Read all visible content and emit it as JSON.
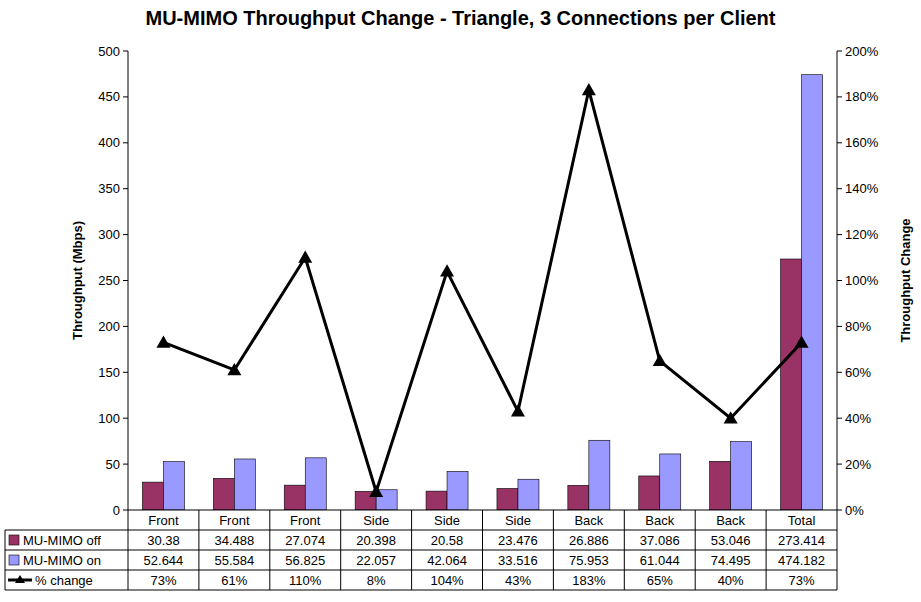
{
  "chart_data": {
    "type": "bar",
    "title": "MU-MIMO Throughput Change - Triangle, 3 Connections per Client",
    "ylabel": "Throughput (Mbps)",
    "y2label": "Throughput Change",
    "categories": [
      "Front",
      "Front",
      "Front",
      "Side",
      "Side",
      "Side",
      "Back",
      "Back",
      "Back",
      "Total"
    ],
    "series": [
      {
        "name": "MU-MIMO off",
        "color": "#993366",
        "values": [
          30.38,
          34.488,
          27.074,
          20.398,
          20.58,
          23.476,
          26.886,
          37.086,
          53.046,
          273.414
        ]
      },
      {
        "name": "MU-MIMO on",
        "color": "#9999ff",
        "values": [
          52.644,
          55.584,
          56.825,
          22.057,
          42.064,
          33.516,
          75.953,
          61.044,
          74.495,
          474.182
        ]
      },
      {
        "name": "% change",
        "type": "line",
        "axis": "y2",
        "color": "#000000",
        "marker": "triangle",
        "values": [
          73,
          61,
          110,
          8,
          104,
          43,
          183,
          65,
          40,
          73
        ],
        "value_labels": [
          "73%",
          "61%",
          "110%",
          "8%",
          "104%",
          "43%",
          "183%",
          "65%",
          "40%",
          "73%"
        ]
      }
    ],
    "ylim": [
      0,
      500
    ],
    "yticks": [
      0,
      50,
      100,
      150,
      200,
      250,
      300,
      350,
      400,
      450,
      500
    ],
    "y2lim": [
      0,
      200
    ],
    "y2ticks": [
      {
        "value": 0,
        "label": "0%"
      },
      {
        "value": 20,
        "label": "20%"
      },
      {
        "value": 40,
        "label": "40%"
      },
      {
        "value": 60,
        "label": "60%"
      },
      {
        "value": 80,
        "label": "80%"
      },
      {
        "value": 100,
        "label": "100%"
      },
      {
        "value": 120,
        "label": "120%"
      },
      {
        "value": 140,
        "label": "140%"
      },
      {
        "value": 160,
        "label": "160%"
      },
      {
        "value": 180,
        "label": "180%"
      },
      {
        "value": 200,
        "label": "200%"
      }
    ],
    "grid": false,
    "data_labels": true
  }
}
